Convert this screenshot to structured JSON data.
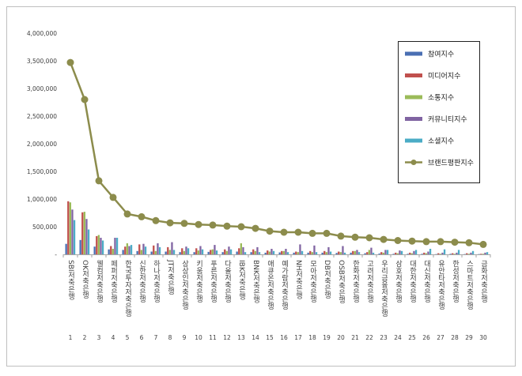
{
  "chart_data": {
    "type": "bar",
    "title": "",
    "xlabel": "",
    "ylabel": "",
    "ylim": [
      0,
      4000000
    ],
    "y_ticks": [
      "4,000,000",
      "3,500,000",
      "3,000,000",
      "2,500,000",
      "2,000,000",
      "1,500,000",
      "1,000,000",
      "500,000",
      "-"
    ],
    "grid": false,
    "legend_position": "right",
    "category_numbers": [
      "1",
      "2",
      "3",
      "4",
      "5",
      "6",
      "7",
      "8",
      "9",
      "10",
      "11",
      "12",
      "13",
      "14",
      "15",
      "16",
      "17",
      "18",
      "19",
      "20",
      "21",
      "22",
      "23",
      "24",
      "25",
      "26",
      "27",
      "28",
      "29",
      "30"
    ],
    "categories": [
      "SBI저축은행",
      "OK저축은행",
      "웰컴저축은행",
      "페퍼저축은행",
      "한국투자저축은행",
      "신한저축은행",
      "하나저축은행",
      "JT저축은행",
      "상상인저축은행",
      "키움저축은행",
      "푸른저축은행",
      "다올저축은행",
      "IBK저축은행",
      "BNK저축은행",
      "애큐온저축은행",
      "예가람저축은행",
      "NH저축은행",
      "모아저축은행",
      "DB저축은행",
      "OSB저축은행",
      "한화저축은행",
      "고려저축은행",
      "우리금융저축은행",
      "삼호저축은행",
      "대한저축은행",
      "대신저축은행",
      "유안타저축은행",
      "한성저축은행",
      "스마트저축은행",
      "금화저축은행"
    ],
    "series": [
      {
        "name": "참여지수",
        "color": "#4a6fb3",
        "values": [
          190000,
          260000,
          140000,
          90000,
          80000,
          60000,
          50000,
          50000,
          40000,
          40000,
          45000,
          40000,
          50000,
          40000,
          30000,
          35000,
          30000,
          30000,
          30000,
          25000,
          30000,
          20000,
          15000,
          10000,
          10000,
          10000,
          5000,
          10000,
          5000,
          5000
        ]
      },
      {
        "name": "미디어지수",
        "color": "#c0504d",
        "values": [
          960000,
          760000,
          330000,
          150000,
          140000,
          180000,
          160000,
          130000,
          110000,
          110000,
          80000,
          90000,
          110000,
          90000,
          70000,
          60000,
          50000,
          60000,
          60000,
          50000,
          60000,
          40000,
          40000,
          30000,
          30000,
          30000,
          20000,
          20000,
          20000,
          10000
        ]
      },
      {
        "name": "소통지수",
        "color": "#9bbb59",
        "values": [
          940000,
          770000,
          350000,
          100000,
          200000,
          80000,
          60000,
          80000,
          60000,
          70000,
          90000,
          60000,
          200000,
          60000,
          50000,
          60000,
          40000,
          40000,
          40000,
          40000,
          60000,
          80000,
          30000,
          20000,
          20000,
          20000,
          10000,
          10000,
          10000,
          10000
        ]
      },
      {
        "name": "커뮤니티지수",
        "color": "#8064a2",
        "values": [
          810000,
          640000,
          300000,
          300000,
          150000,
          190000,
          200000,
          220000,
          140000,
          150000,
          170000,
          140000,
          130000,
          130000,
          100000,
          100000,
          180000,
          160000,
          130000,
          150000,
          80000,
          120000,
          80000,
          70000,
          60000,
          50000,
          30000,
          30000,
          30000,
          30000
        ]
      },
      {
        "name": "소셜지수",
        "color": "#4bacc6",
        "values": [
          620000,
          450000,
          250000,
          300000,
          170000,
          140000,
          130000,
          80000,
          110000,
          90000,
          70000,
          90000,
          40000,
          40000,
          60000,
          40000,
          60000,
          40000,
          50000,
          30000,
          40000,
          30000,
          80000,
          60000,
          80000,
          100000,
          90000,
          80000,
          60000,
          40000
        ]
      },
      {
        "name": "브랜드평판지수",
        "color": "#8c8c4c",
        "line": true,
        "values": [
          3470000,
          2800000,
          1330000,
          1030000,
          730000,
          680000,
          610000,
          570000,
          560000,
          540000,
          530000,
          510000,
          500000,
          470000,
          420000,
          400000,
          400000,
          380000,
          380000,
          330000,
          310000,
          300000,
          270000,
          250000,
          240000,
          230000,
          230000,
          220000,
          210000,
          180000
        ]
      }
    ]
  }
}
